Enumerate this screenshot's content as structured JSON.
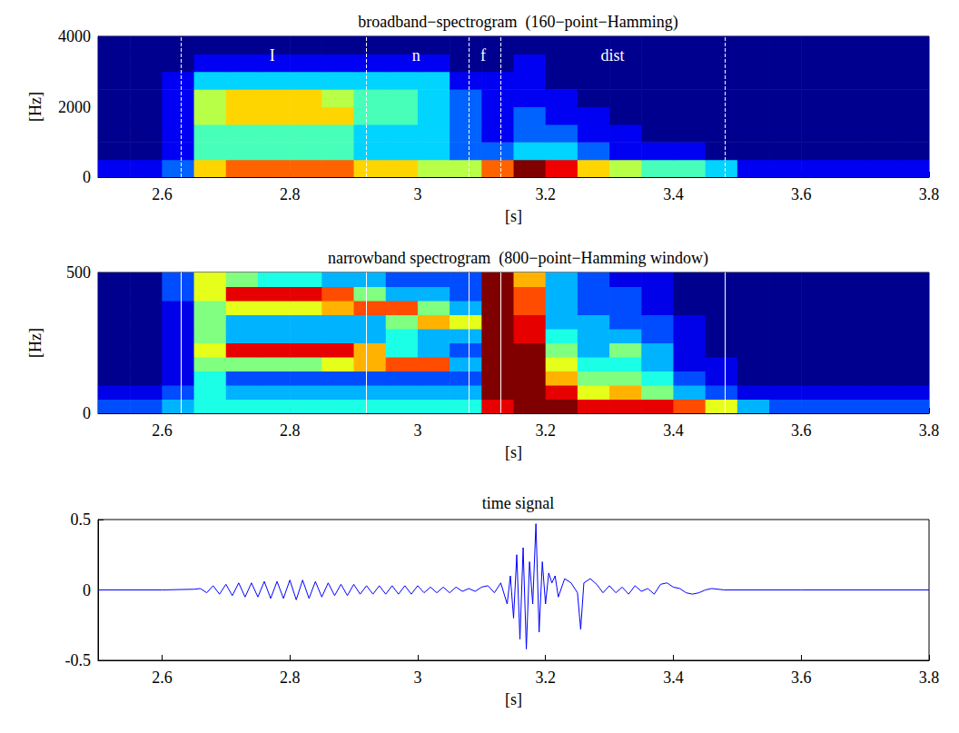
{
  "chart_data": [
    {
      "type": "heatmap",
      "title": "broadband−spectrogram  (160−point−Hamming)",
      "x_label": "[s]",
      "y_label": "[Hz]",
      "xlim": [
        2.5,
        3.8
      ],
      "xticks": [
        2.6,
        2.8,
        3,
        3.2,
        3.4,
        3.6,
        3.8
      ],
      "ylim": [
        0,
        4000
      ],
      "yticks": [
        0,
        2000,
        4000
      ],
      "x_edges": [
        2.5,
        2.55,
        2.6,
        2.65,
        2.7,
        2.75,
        2.8,
        2.85,
        2.9,
        2.95,
        3,
        3.05,
        3.1,
        3.15,
        3.2,
        3.25,
        3.3,
        3.35,
        3.4,
        3.45,
        3.5,
        3.55,
        3.6,
        3.65,
        3.7,
        3.75,
        3.8
      ],
      "y_edges": [
        0,
        500,
        1000,
        1500,
        2000,
        2500,
        3000,
        3500,
        4000
      ],
      "cells": [
        [
          1,
          1,
          2,
          6,
          7,
          7,
          7,
          7,
          6,
          6,
          5,
          5,
          7,
          9,
          8,
          6,
          5,
          4,
          4,
          3,
          1,
          1,
          1,
          1,
          1,
          1
        ],
        [
          0,
          0,
          1,
          4,
          4,
          4,
          4,
          4,
          3,
          3,
          3,
          2,
          2,
          3,
          3,
          2,
          1,
          1,
          1,
          0,
          0,
          0,
          0,
          0,
          0,
          0
        ],
        [
          0,
          0,
          1,
          4,
          4,
          4,
          4,
          4,
          3,
          3,
          3,
          2,
          1,
          2,
          2,
          1,
          1,
          0,
          0,
          0,
          0,
          0,
          0,
          0,
          0,
          0
        ],
        [
          0,
          0,
          1,
          5,
          6,
          6,
          6,
          6,
          4,
          4,
          3,
          2,
          1,
          2,
          1,
          1,
          0,
          0,
          0,
          0,
          0,
          0,
          0,
          0,
          0,
          0
        ],
        [
          0,
          0,
          1,
          5,
          6,
          6,
          6,
          5,
          4,
          4,
          3,
          2,
          1,
          1,
          1,
          0,
          0,
          0,
          0,
          0,
          0,
          0,
          0,
          0,
          0,
          0
        ],
        [
          0,
          0,
          1,
          3,
          3,
          3,
          3,
          3,
          3,
          3,
          3,
          1,
          1,
          1,
          0,
          0,
          0,
          0,
          0,
          0,
          0,
          0,
          0,
          0,
          0,
          0
        ],
        [
          0,
          0,
          0,
          1,
          1,
          1,
          1,
          1,
          1,
          1,
          1,
          0,
          0,
          1,
          0,
          0,
          0,
          0,
          0,
          0,
          0,
          0,
          0,
          0,
          0,
          0
        ],
        [
          0,
          0,
          0,
          0,
          0,
          0,
          0,
          0,
          0,
          0,
          0,
          0,
          0,
          0,
          0,
          0,
          0,
          0,
          0,
          0,
          0,
          0,
          0,
          0,
          0,
          0
        ]
      ],
      "boundaries": [
        2.625,
        2.92,
        3.075,
        3.13,
        3.48
      ],
      "segment_labels": [
        "I",
        "n",
        "f",
        "dist"
      ],
      "line_style": "dashed",
      "grid": false
    },
    {
      "type": "heatmap",
      "title": "narrowband spectrogram  (800−point−Hamming window)",
      "x_label": "[s]",
      "y_label": "[Hz]",
      "xlim": [
        2.5,
        3.8
      ],
      "xticks": [
        2.6,
        2.8,
        3,
        3.2,
        3.4,
        3.6,
        3.8
      ],
      "ylim": [
        0,
        500
      ],
      "yticks": [
        0,
        500
      ],
      "x_edges": [
        2.5,
        2.55,
        2.6,
        2.65,
        2.7,
        2.75,
        2.8,
        2.85,
        2.9,
        2.95,
        3,
        3.05,
        3.1,
        3.15,
        3.2,
        3.25,
        3.3,
        3.35,
        3.4,
        3.45,
        3.5,
        3.55,
        3.6,
        3.65,
        3.7,
        3.75,
        3.8
      ],
      "y_edges": [
        0,
        50,
        100,
        150,
        200,
        250,
        300,
        350,
        400,
        450,
        500
      ],
      "cells": [
        [
          2,
          2,
          3,
          4,
          4,
          4,
          4,
          4,
          4,
          4,
          4,
          4,
          9,
          10,
          10,
          9,
          9,
          9,
          8,
          6,
          3,
          2,
          2,
          2,
          2,
          2
        ],
        [
          1,
          1,
          2,
          4,
          3,
          3,
          3,
          3,
          3,
          3,
          3,
          3,
          10,
          10,
          9,
          6,
          7,
          5,
          3,
          2,
          1,
          1,
          1,
          1,
          1,
          1
        ],
        [
          0,
          0,
          1,
          4,
          2,
          2,
          2,
          2,
          2,
          2,
          2,
          2,
          10,
          10,
          7,
          5,
          5,
          4,
          2,
          1,
          0,
          0,
          0,
          0,
          0,
          0
        ],
        [
          0,
          0,
          1,
          5,
          5,
          5,
          5,
          6,
          7,
          8,
          8,
          3,
          10,
          10,
          6,
          4,
          4,
          3,
          1,
          1,
          0,
          0,
          0,
          0,
          0,
          0
        ],
        [
          0,
          0,
          1,
          6,
          9,
          9,
          9,
          9,
          7,
          4,
          3,
          2,
          10,
          10,
          5,
          3,
          5,
          3,
          1,
          0,
          0,
          0,
          0,
          0,
          0,
          0
        ],
        [
          0,
          0,
          1,
          5,
          3,
          3,
          3,
          3,
          3,
          4,
          3,
          3,
          10,
          9,
          4,
          3,
          3,
          2,
          1,
          0,
          0,
          0,
          0,
          0,
          0,
          0
        ],
        [
          0,
          0,
          1,
          5,
          3,
          3,
          3,
          3,
          3,
          5,
          7,
          6,
          10,
          9,
          3,
          3,
          2,
          2,
          1,
          0,
          0,
          0,
          0,
          0,
          0,
          0
        ],
        [
          0,
          0,
          1,
          5,
          6,
          6,
          6,
          7,
          8,
          8,
          5,
          3,
          10,
          8,
          3,
          2,
          2,
          1,
          0,
          0,
          0,
          0,
          0,
          0,
          0,
          0
        ],
        [
          0,
          0,
          2,
          6,
          9,
          9,
          9,
          8,
          5,
          3,
          3,
          2,
          10,
          8,
          3,
          2,
          2,
          1,
          0,
          0,
          0,
          0,
          0,
          0,
          0,
          0
        ],
        [
          0,
          0,
          2,
          6,
          5,
          4,
          4,
          3,
          3,
          2,
          2,
          2,
          10,
          7,
          3,
          2,
          1,
          1,
          0,
          0,
          0,
          0,
          0,
          0,
          0,
          0
        ]
      ],
      "boundaries": [
        2.625,
        2.92,
        3.075,
        3.13,
        3.48
      ],
      "line_style": "solid",
      "grid": false
    },
    {
      "type": "line",
      "title": "time signal",
      "x_label": "[s]",
      "xlim": [
        2.5,
        3.8
      ],
      "xticks": [
        2.6,
        2.8,
        3,
        3.2,
        3.4,
        3.6,
        3.8
      ],
      "ylim": [
        -0.5,
        0.5
      ],
      "yticks": [
        -0.5,
        0,
        0.5
      ],
      "x": [
        2.5,
        2.6,
        2.65,
        2.66,
        2.67,
        2.68,
        2.69,
        2.7,
        2.71,
        2.72,
        2.73,
        2.74,
        2.75,
        2.76,
        2.77,
        2.78,
        2.79,
        2.8,
        2.81,
        2.82,
        2.83,
        2.84,
        2.85,
        2.86,
        2.87,
        2.88,
        2.89,
        2.9,
        2.91,
        2.92,
        2.93,
        2.94,
        2.95,
        2.96,
        2.97,
        2.98,
        2.99,
        3,
        3.01,
        3.02,
        3.03,
        3.04,
        3.05,
        3.06,
        3.07,
        3.08,
        3.09,
        3.1,
        3.11,
        3.12,
        3.13,
        3.14,
        3.145,
        3.15,
        3.155,
        3.16,
        3.165,
        3.17,
        3.175,
        3.18,
        3.185,
        3.19,
        3.195,
        3.2,
        3.205,
        3.21,
        3.215,
        3.22,
        3.23,
        3.24,
        3.25,
        3.255,
        3.26,
        3.27,
        3.28,
        3.29,
        3.3,
        3.31,
        3.32,
        3.33,
        3.34,
        3.35,
        3.36,
        3.37,
        3.38,
        3.39,
        3.4,
        3.41,
        3.42,
        3.43,
        3.44,
        3.45,
        3.46,
        3.48,
        3.6,
        3.8
      ],
      "values": [
        0,
        0,
        0.005,
        0.01,
        -0.02,
        0.03,
        -0.03,
        0.04,
        -0.04,
        0.05,
        -0.05,
        0.05,
        -0.05,
        0.06,
        -0.06,
        0.06,
        -0.06,
        0.07,
        -0.07,
        0.07,
        -0.06,
        0.06,
        -0.05,
        0.05,
        -0.04,
        0.04,
        -0.04,
        0.04,
        -0.03,
        0.03,
        -0.03,
        0.03,
        -0.03,
        0.03,
        -0.03,
        0.03,
        -0.03,
        0.03,
        -0.02,
        0.02,
        -0.02,
        0.02,
        -0.02,
        0.02,
        -0.01,
        0.01,
        -0.01,
        0.02,
        0.03,
        -0.02,
        0.05,
        -0.1,
        0.1,
        -0.2,
        0.25,
        -0.35,
        0.3,
        -0.42,
        0.2,
        -0.1,
        0.47,
        -0.3,
        0.2,
        -0.1,
        0.12,
        0.05,
        0.1,
        -0.05,
        0.08,
        0.05,
        -0.02,
        -0.28,
        0.05,
        0.08,
        0.04,
        -0.02,
        0.03,
        -0.02,
        0.02,
        -0.03,
        0.03,
        -0.01,
        0.01,
        -0.03,
        0.04,
        0.05,
        0.02,
        0.01,
        -0.02,
        -0.03,
        -0.02,
        0,
        0.01,
        0,
        0,
        0
      ],
      "color": "#0000ff",
      "line_style": "solid",
      "grid": false
    }
  ]
}
